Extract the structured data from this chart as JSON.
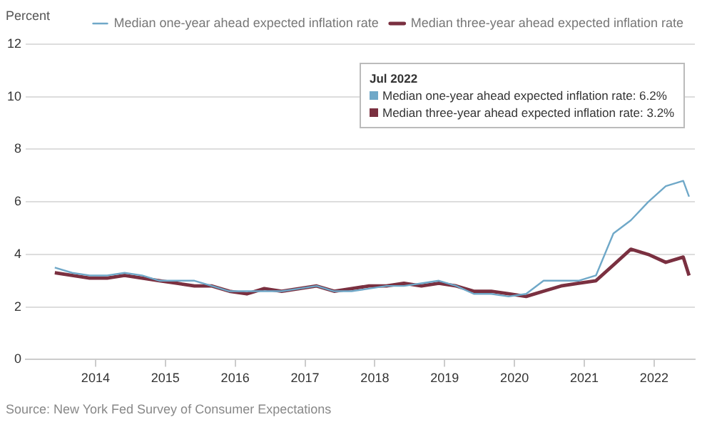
{
  "chart_data": {
    "type": "line",
    "ylabel": "Percent",
    "x": [
      "2013-06",
      "2013-09",
      "2013-12",
      "2014-03",
      "2014-06",
      "2014-09",
      "2014-12",
      "2015-03",
      "2015-06",
      "2015-09",
      "2015-12",
      "2016-03",
      "2016-06",
      "2016-09",
      "2016-12",
      "2017-03",
      "2017-06",
      "2017-09",
      "2017-12",
      "2018-03",
      "2018-06",
      "2018-09",
      "2018-12",
      "2019-03",
      "2019-06",
      "2019-09",
      "2019-12",
      "2020-03",
      "2020-06",
      "2020-09",
      "2020-12",
      "2021-03",
      "2021-06",
      "2021-09",
      "2021-12",
      "2022-03",
      "2022-06",
      "2022-07"
    ],
    "series": [
      {
        "name": "Median one-year ahead expected inflation rate",
        "color": "#6fa8c8",
        "values": [
          3.5,
          3.3,
          3.2,
          3.2,
          3.3,
          3.2,
          3.0,
          3.0,
          3.0,
          2.8,
          2.6,
          2.6,
          2.6,
          2.6,
          2.7,
          2.8,
          2.6,
          2.6,
          2.7,
          2.8,
          2.8,
          2.9,
          3.0,
          2.8,
          2.5,
          2.5,
          2.4,
          2.5,
          3.0,
          3.0,
          3.0,
          3.2,
          4.8,
          5.3,
          6.0,
          6.6,
          6.8,
          6.2
        ]
      },
      {
        "name": "Median three-year ahead expected inflation rate",
        "color": "#7a3040",
        "values": [
          3.3,
          3.2,
          3.1,
          3.1,
          3.2,
          3.1,
          3.0,
          2.9,
          2.8,
          2.8,
          2.6,
          2.5,
          2.7,
          2.6,
          2.7,
          2.8,
          2.6,
          2.7,
          2.8,
          2.8,
          2.9,
          2.8,
          2.9,
          2.8,
          2.6,
          2.6,
          2.5,
          2.4,
          2.6,
          2.8,
          2.9,
          3.0,
          3.6,
          4.2,
          4.0,
          3.7,
          3.9,
          3.2
        ]
      }
    ],
    "xlim": [
      "2013-01",
      "2022-08"
    ],
    "xticks": [
      "2014",
      "2015",
      "2016",
      "2017",
      "2018",
      "2019",
      "2020",
      "2021",
      "2022"
    ],
    "ylim": [
      0,
      12
    ],
    "yticks": [
      0,
      2,
      4,
      6,
      8,
      10,
      12
    ],
    "grid": "y",
    "legend": "top right",
    "marker": "none",
    "line_style": "solid",
    "annotations": [
      "Jul 2022",
      "Median one-year ahead expected inflation rate: 6.2%",
      "Median three-year ahead expected inflation rate: 3.2%",
      "Source: New York Fed Survey of Consumer Expectations"
    ]
  }
}
